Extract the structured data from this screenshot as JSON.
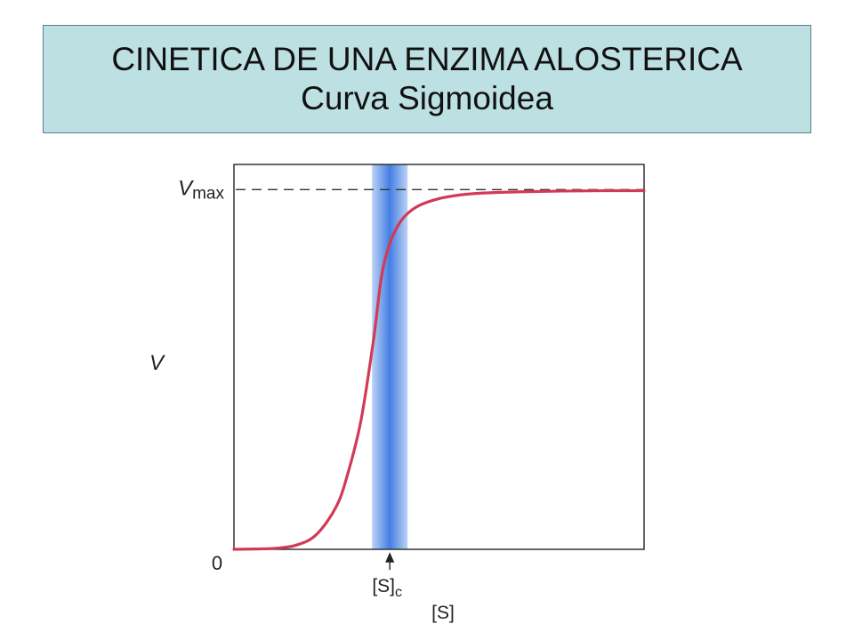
{
  "slide": {
    "title": "CINETICA DE UNA ENZIMA ALOSTERICA",
    "subtitle": "Curva Sigmoidea"
  },
  "chart_data": {
    "type": "line",
    "title": "",
    "xlabel": "[S]",
    "ylabel": "V",
    "xlim": [
      0,
      1
    ],
    "ylim": [
      0,
      1.07
    ],
    "origin_label": "0",
    "reference_line": {
      "label_main": "V",
      "label_sub": "max",
      "value": 1.0,
      "style": "dashed"
    },
    "critical_concentration": {
      "label_main": "[S]",
      "label_sub": "c",
      "value": 0.38,
      "band_color": "#3a7be0"
    },
    "series": [
      {
        "color": "#d23a55",
        "x": [
          0.0,
          0.05,
          0.1,
          0.15,
          0.2,
          0.25,
          0.28,
          0.31,
          0.34,
          0.36,
          0.38,
          0.4,
          0.42,
          0.45,
          0.5,
          0.55,
          0.6,
          0.7,
          0.8,
          0.9,
          1.0
        ],
        "y": [
          0.0,
          0.001,
          0.003,
          0.011,
          0.04,
          0.12,
          0.22,
          0.36,
          0.58,
          0.76,
          0.85,
          0.9,
          0.93,
          0.955,
          0.975,
          0.985,
          0.99,
          0.994,
          0.996,
          0.997,
          0.997
        ]
      }
    ]
  }
}
